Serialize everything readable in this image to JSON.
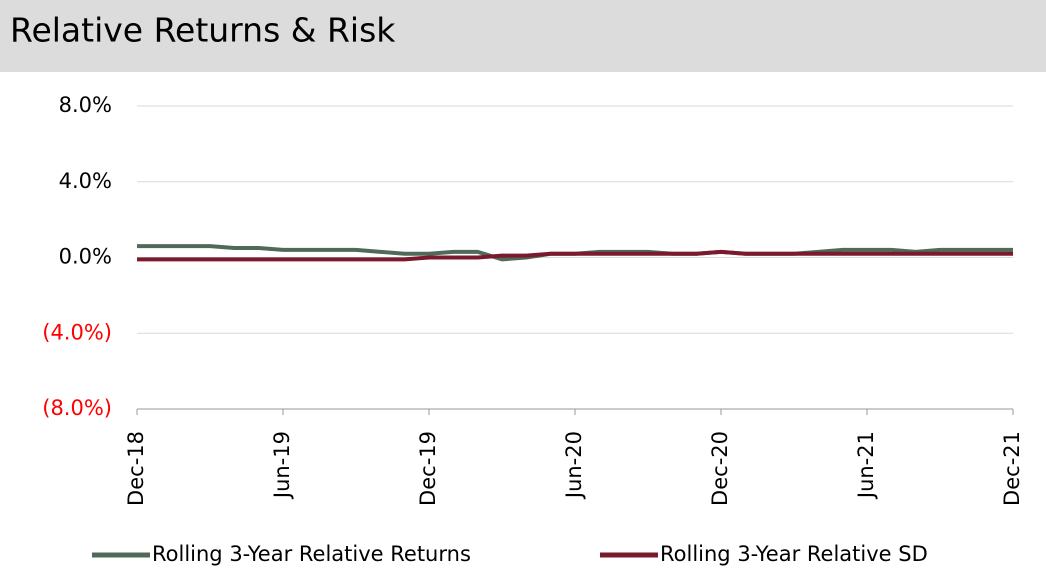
{
  "header": {
    "title": "Relative Returns & Risk"
  },
  "chart_data": {
    "type": "line",
    "categories": [
      "Dec-18",
      null,
      null,
      null,
      null,
      null,
      "Jun-19",
      null,
      null,
      null,
      null,
      null,
      "Dec-19",
      null,
      null,
      null,
      null,
      null,
      "Jun-20",
      null,
      null,
      null,
      null,
      null,
      "Dec-20",
      null,
      null,
      null,
      null,
      null,
      "Jun-21",
      null,
      null,
      null,
      null,
      null,
      "Dec-21"
    ],
    "series": [
      {
        "name": "Rolling 3-Year Relative Returns",
        "color": "#4f6b57",
        "values": [
          0.6,
          0.6,
          0.6,
          0.6,
          0.5,
          0.5,
          0.4,
          0.4,
          0.4,
          0.4,
          0.3,
          0.2,
          0.2,
          0.3,
          0.3,
          -0.1,
          0.0,
          0.2,
          0.2,
          0.3,
          0.3,
          0.3,
          0.2,
          0.2,
          0.3,
          0.2,
          0.2,
          0.2,
          0.3,
          0.4,
          0.4,
          0.4,
          0.3,
          0.4,
          0.4,
          0.4,
          0.4
        ]
      },
      {
        "name": "Rolling 3-Year Relative SD",
        "color": "#7b1a2e",
        "values": [
          -0.1,
          -0.1,
          -0.1,
          -0.1,
          -0.1,
          -0.1,
          -0.1,
          -0.1,
          -0.1,
          -0.1,
          -0.1,
          -0.1,
          0.0,
          0.0,
          0.0,
          0.1,
          0.1,
          0.2,
          0.2,
          0.2,
          0.2,
          0.2,
          0.2,
          0.2,
          0.3,
          0.2,
          0.2,
          0.2,
          0.2,
          0.2,
          0.2,
          0.2,
          0.2,
          0.2,
          0.2,
          0.2,
          0.2
        ]
      }
    ],
    "ylim": [
      -8,
      8
    ],
    "yticks": [
      {
        "value": -8,
        "label": "(8.0%)"
      },
      {
        "value": -4,
        "label": "(4.0%)"
      },
      {
        "value": 0,
        "label": "0.0%"
      },
      {
        "value": 4,
        "label": "4.0%"
      },
      {
        "value": 8,
        "label": "8.0%"
      }
    ],
    "negative_tick_color": "#ff0000",
    "grid": true,
    "legend": "bottom"
  }
}
